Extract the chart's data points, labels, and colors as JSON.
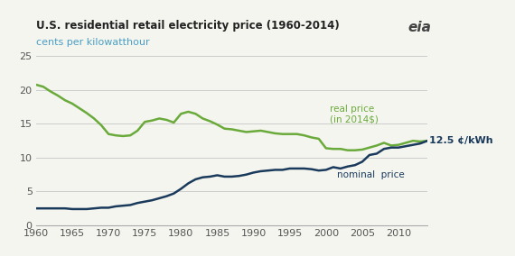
{
  "title": "U.S. residential retail electricity price (1960-2014)",
  "subtitle": "cents per kilowatthour",
  "title_color": "#222222",
  "subtitle_color": "#4a9fc4",
  "background_color": "#f5f5f0",
  "real_color": "#6aaa3a",
  "nominal_color": "#1a3a5c",
  "real_label": "real price\n(in 2014$)",
  "nominal_label": "nominal  price",
  "end_label": "12.5 ¢/kWh",
  "ylim": [
    0,
    25
  ],
  "yticks": [
    0,
    5,
    10,
    15,
    20,
    25
  ],
  "xlim": [
    1960,
    2014
  ],
  "xticks": [
    1960,
    1965,
    1970,
    1975,
    1980,
    1985,
    1990,
    1995,
    2000,
    2005,
    2010
  ],
  "years": [
    1960,
    1961,
    1962,
    1963,
    1964,
    1965,
    1966,
    1967,
    1968,
    1969,
    1970,
    1971,
    1972,
    1973,
    1974,
    1975,
    1976,
    1977,
    1978,
    1979,
    1980,
    1981,
    1982,
    1983,
    1984,
    1985,
    1986,
    1987,
    1988,
    1989,
    1990,
    1991,
    1992,
    1993,
    1994,
    1995,
    1996,
    1997,
    1998,
    1999,
    2000,
    2001,
    2002,
    2003,
    2004,
    2005,
    2006,
    2007,
    2008,
    2009,
    2010,
    2011,
    2012,
    2013,
    2014
  ],
  "real_prices": [
    20.8,
    20.5,
    19.8,
    19.2,
    18.5,
    18.0,
    17.3,
    16.6,
    15.8,
    14.8,
    13.5,
    13.3,
    13.2,
    13.3,
    14.0,
    15.3,
    15.5,
    15.8,
    15.6,
    15.2,
    16.5,
    16.8,
    16.5,
    15.8,
    15.4,
    14.9,
    14.3,
    14.2,
    14.0,
    13.8,
    13.9,
    14.0,
    13.8,
    13.6,
    13.5,
    13.5,
    13.5,
    13.3,
    13.0,
    12.8,
    11.4,
    11.3,
    11.3,
    11.1,
    11.1,
    11.2,
    11.5,
    11.8,
    12.2,
    11.8,
    11.9,
    12.2,
    12.5,
    12.4,
    12.5
  ],
  "nominal_prices": [
    2.5,
    2.5,
    2.5,
    2.5,
    2.5,
    2.4,
    2.4,
    2.4,
    2.5,
    2.6,
    2.6,
    2.8,
    2.9,
    3.0,
    3.3,
    3.5,
    3.7,
    4.0,
    4.3,
    4.7,
    5.4,
    6.2,
    6.8,
    7.1,
    7.2,
    7.4,
    7.2,
    7.2,
    7.3,
    7.5,
    7.8,
    8.0,
    8.1,
    8.2,
    8.2,
    8.4,
    8.4,
    8.4,
    8.3,
    8.1,
    8.2,
    8.6,
    8.4,
    8.7,
    8.9,
    9.4,
    10.4,
    10.6,
    11.3,
    11.5,
    11.5,
    11.7,
    11.9,
    12.1,
    12.5
  ]
}
